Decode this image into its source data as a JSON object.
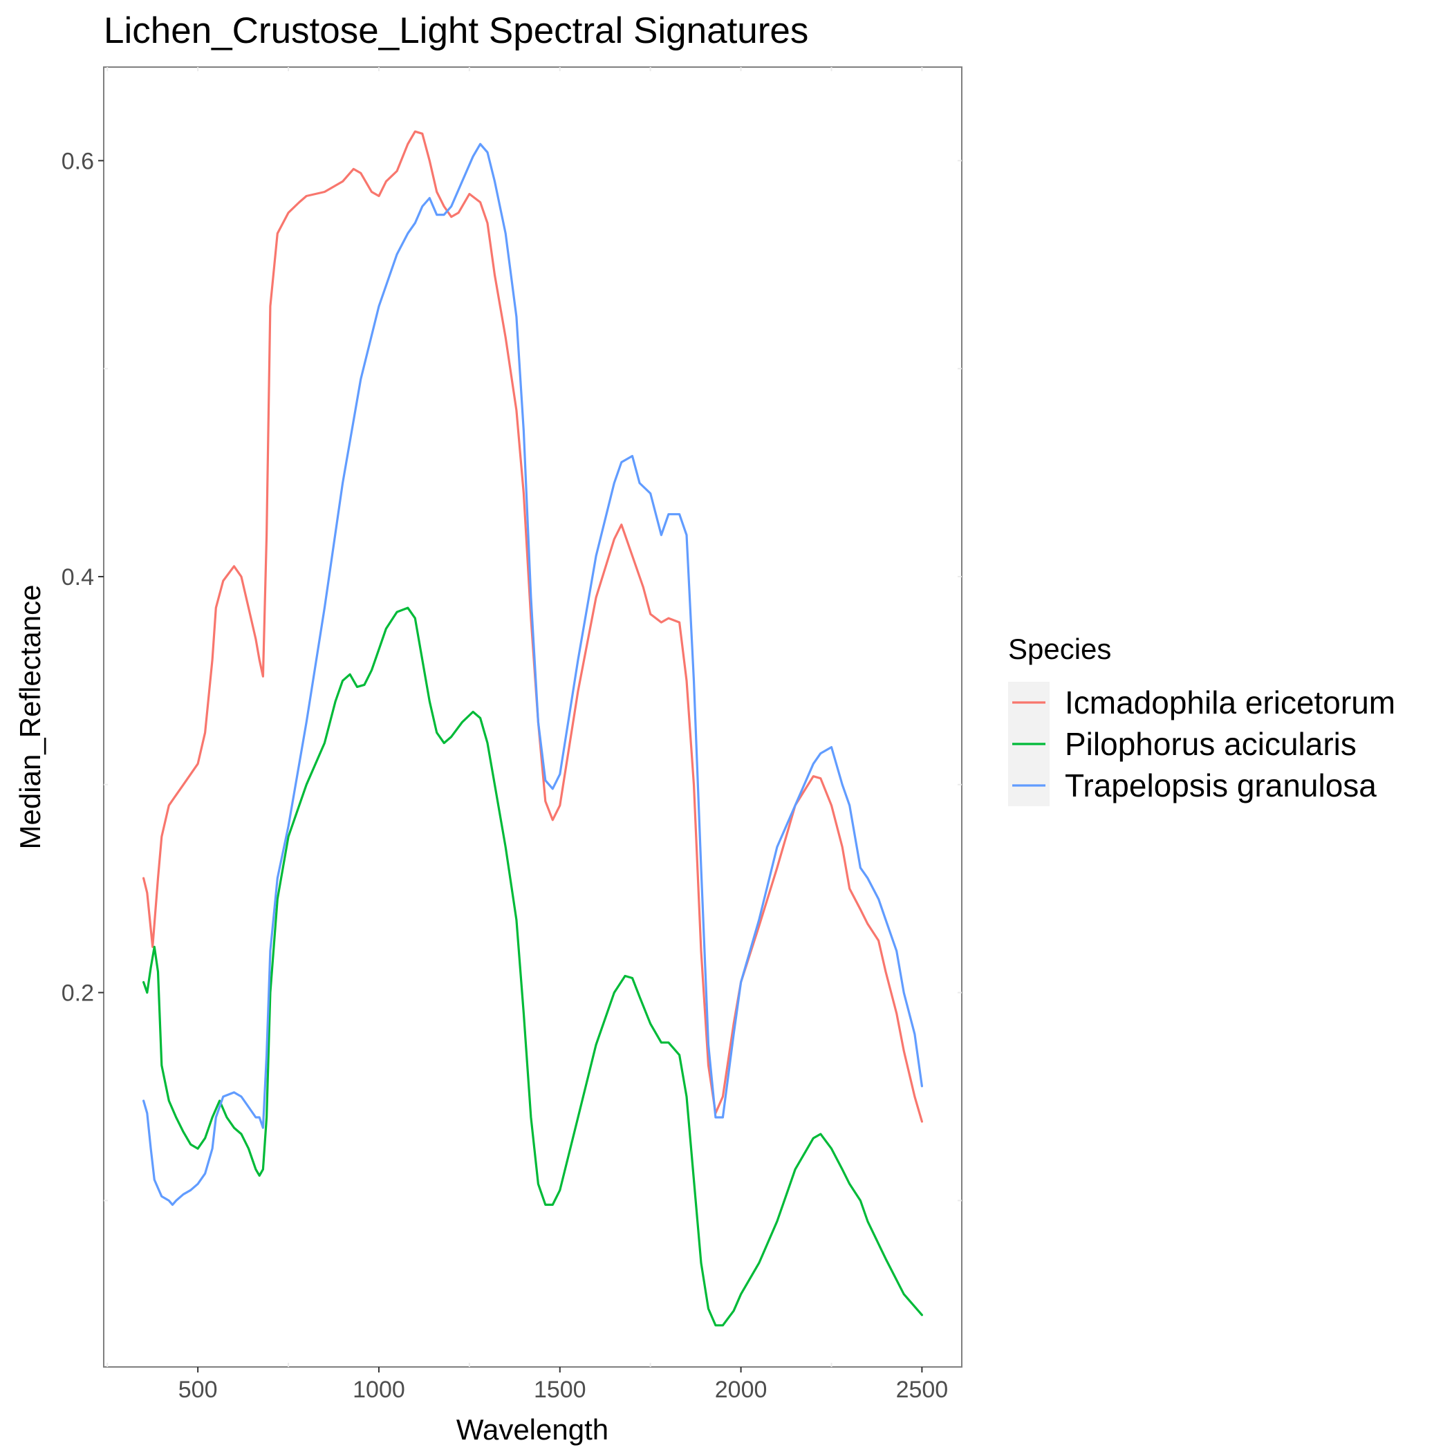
{
  "chart_data": {
    "type": "line",
    "title": "Lichen_Crustose_Light Spectral Signatures",
    "xlabel": "Wavelength",
    "ylabel": "Median_Reflectance",
    "xlim": [
      240,
      2610
    ],
    "ylim": [
      0.02,
      0.645
    ],
    "xticks": [
      500,
      1000,
      1500,
      2000,
      2500
    ],
    "yticks": [
      0.2,
      0.4,
      0.6
    ],
    "ytick_labels": [
      "0.2",
      "0.4",
      "0.6"
    ],
    "xtick_labels": [
      "500",
      "1000",
      "1500",
      "2000",
      "2500"
    ],
    "grid": false,
    "legend": {
      "title": "Species",
      "position": "right"
    },
    "series": [
      {
        "name": "Icmadophila ericetorum",
        "color": "#F8766D",
        "x": [
          350,
          360,
          375,
          390,
          400,
          420,
          440,
          460,
          480,
          500,
          520,
          540,
          550,
          570,
          600,
          620,
          640,
          660,
          670,
          680,
          690,
          700,
          720,
          750,
          780,
          800,
          850,
          900,
          930,
          950,
          980,
          1000,
          1020,
          1050,
          1080,
          1100,
          1120,
          1140,
          1160,
          1180,
          1200,
          1220,
          1250,
          1280,
          1300,
          1320,
          1350,
          1380,
          1400,
          1420,
          1440,
          1460,
          1480,
          1500,
          1550,
          1600,
          1650,
          1670,
          1700,
          1730,
          1750,
          1780,
          1800,
          1830,
          1850,
          1870,
          1890,
          1910,
          1930,
          1950,
          1980,
          2000,
          2050,
          2100,
          2150,
          2200,
          2220,
          2250,
          2280,
          2300,
          2330,
          2350,
          2380,
          2400,
          2430,
          2450,
          2480,
          2500
        ],
        "y": [
          0.255,
          0.248,
          0.222,
          0.255,
          0.275,
          0.29,
          0.295,
          0.3,
          0.305,
          0.31,
          0.325,
          0.36,
          0.385,
          0.398,
          0.405,
          0.4,
          0.385,
          0.37,
          0.36,
          0.352,
          0.42,
          0.53,
          0.565,
          0.575,
          0.58,
          0.583,
          0.585,
          0.59,
          0.596,
          0.594,
          0.585,
          0.583,
          0.59,
          0.595,
          0.608,
          0.614,
          0.613,
          0.6,
          0.585,
          0.578,
          0.573,
          0.575,
          0.584,
          0.58,
          0.57,
          0.545,
          0.515,
          0.48,
          0.44,
          0.38,
          0.33,
          0.292,
          0.283,
          0.29,
          0.345,
          0.39,
          0.418,
          0.425,
          0.41,
          0.395,
          0.382,
          0.378,
          0.38,
          0.378,
          0.35,
          0.3,
          0.22,
          0.165,
          0.142,
          0.15,
          0.185,
          0.205,
          0.232,
          0.26,
          0.29,
          0.304,
          0.303,
          0.29,
          0.27,
          0.25,
          0.24,
          0.233,
          0.225,
          0.21,
          0.19,
          0.172,
          0.15,
          0.138
        ]
      },
      {
        "name": "Pilophorus acicularis",
        "color": "#00BA38",
        "x": [
          350,
          360,
          370,
          380,
          390,
          400,
          420,
          440,
          460,
          480,
          500,
          520,
          540,
          560,
          580,
          600,
          620,
          640,
          660,
          670,
          680,
          690,
          700,
          720,
          750,
          800,
          850,
          880,
          900,
          920,
          940,
          960,
          980,
          1000,
          1020,
          1050,
          1080,
          1100,
          1120,
          1140,
          1160,
          1180,
          1200,
          1230,
          1260,
          1280,
          1300,
          1320,
          1350,
          1380,
          1400,
          1420,
          1440,
          1460,
          1480,
          1500,
          1550,
          1600,
          1650,
          1680,
          1700,
          1720,
          1750,
          1780,
          1800,
          1830,
          1850,
          1870,
          1890,
          1910,
          1930,
          1950,
          1980,
          2000,
          2050,
          2100,
          2150,
          2200,
          2220,
          2250,
          2280,
          2300,
          2330,
          2350,
          2400,
          2450,
          2500
        ],
        "y": [
          0.205,
          0.2,
          0.212,
          0.222,
          0.21,
          0.165,
          0.148,
          0.14,
          0.133,
          0.127,
          0.125,
          0.13,
          0.14,
          0.148,
          0.14,
          0.135,
          0.132,
          0.125,
          0.115,
          0.112,
          0.115,
          0.14,
          0.2,
          0.245,
          0.275,
          0.3,
          0.32,
          0.34,
          0.35,
          0.353,
          0.347,
          0.348,
          0.355,
          0.365,
          0.375,
          0.383,
          0.385,
          0.38,
          0.36,
          0.34,
          0.325,
          0.32,
          0.323,
          0.33,
          0.335,
          0.332,
          0.32,
          0.3,
          0.27,
          0.235,
          0.19,
          0.14,
          0.108,
          0.098,
          0.098,
          0.105,
          0.14,
          0.175,
          0.2,
          0.208,
          0.207,
          0.198,
          0.185,
          0.176,
          0.176,
          0.17,
          0.15,
          0.11,
          0.07,
          0.048,
          0.04,
          0.04,
          0.047,
          0.055,
          0.07,
          0.09,
          0.115,
          0.13,
          0.132,
          0.125,
          0.115,
          0.108,
          0.1,
          0.09,
          0.072,
          0.055,
          0.045
        ]
      },
      {
        "name": "Trapelopsis granulosa",
        "color": "#619CFF",
        "x": [
          350,
          360,
          370,
          380,
          390,
          400,
          420,
          430,
          440,
          460,
          480,
          500,
          520,
          540,
          550,
          570,
          600,
          620,
          640,
          660,
          670,
          680,
          690,
          700,
          720,
          750,
          800,
          850,
          900,
          950,
          1000,
          1050,
          1080,
          1100,
          1120,
          1140,
          1160,
          1180,
          1200,
          1230,
          1260,
          1280,
          1300,
          1320,
          1350,
          1380,
          1400,
          1420,
          1440,
          1460,
          1480,
          1500,
          1550,
          1600,
          1650,
          1670,
          1700,
          1720,
          1750,
          1780,
          1800,
          1830,
          1850,
          1870,
          1890,
          1910,
          1930,
          1950,
          1980,
          2000,
          2050,
          2100,
          2150,
          2200,
          2220,
          2250,
          2280,
          2300,
          2330,
          2350,
          2380,
          2400,
          2430,
          2450,
          2480,
          2500
        ],
        "y": [
          0.148,
          0.142,
          0.125,
          0.11,
          0.106,
          0.102,
          0.1,
          0.098,
          0.1,
          0.103,
          0.105,
          0.108,
          0.113,
          0.125,
          0.14,
          0.15,
          0.152,
          0.15,
          0.145,
          0.14,
          0.14,
          0.135,
          0.17,
          0.22,
          0.255,
          0.28,
          0.33,
          0.385,
          0.445,
          0.495,
          0.53,
          0.555,
          0.565,
          0.57,
          0.578,
          0.582,
          0.574,
          0.574,
          0.578,
          0.59,
          0.602,
          0.608,
          0.604,
          0.59,
          0.565,
          0.525,
          0.47,
          0.39,
          0.33,
          0.302,
          0.298,
          0.305,
          0.36,
          0.41,
          0.445,
          0.455,
          0.458,
          0.445,
          0.44,
          0.42,
          0.43,
          0.43,
          0.42,
          0.35,
          0.26,
          0.175,
          0.14,
          0.14,
          0.18,
          0.205,
          0.235,
          0.27,
          0.29,
          0.31,
          0.315,
          0.318,
          0.3,
          0.29,
          0.26,
          0.255,
          0.245,
          0.235,
          0.22,
          0.2,
          0.18,
          0.155
        ]
      }
    ]
  }
}
